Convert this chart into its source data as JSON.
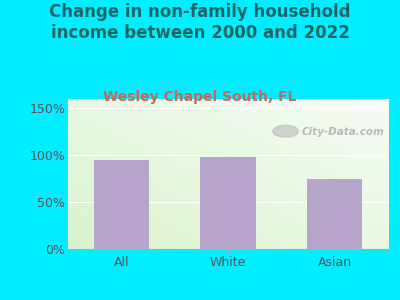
{
  "title": "Change in non-family household\nincome between 2000 and 2022",
  "subtitle": "Wesley Chapel South, FL",
  "categories": [
    "All",
    "White",
    "Asian"
  ],
  "values": [
    95,
    98,
    75
  ],
  "bar_color": "#b8a5cc",
  "background_color": "#00eeff",
  "title_color": "#1a6666",
  "subtitle_color": "#cc6655",
  "tick_color": "#555555",
  "yticks": [
    0,
    50,
    100,
    150
  ],
  "ytick_labels": [
    "0%",
    "50%",
    "100%",
    "150%"
  ],
  "ylim": [
    0,
    160
  ],
  "watermark": "City-Data.com",
  "title_fontsize": 12,
  "subtitle_fontsize": 10,
  "tick_fontsize": 9,
  "plot_bg_color_top": "#e8f2e0",
  "plot_bg_color_bottom": "#f8fff0",
  "plot_bg_right": "#f0f8ff"
}
